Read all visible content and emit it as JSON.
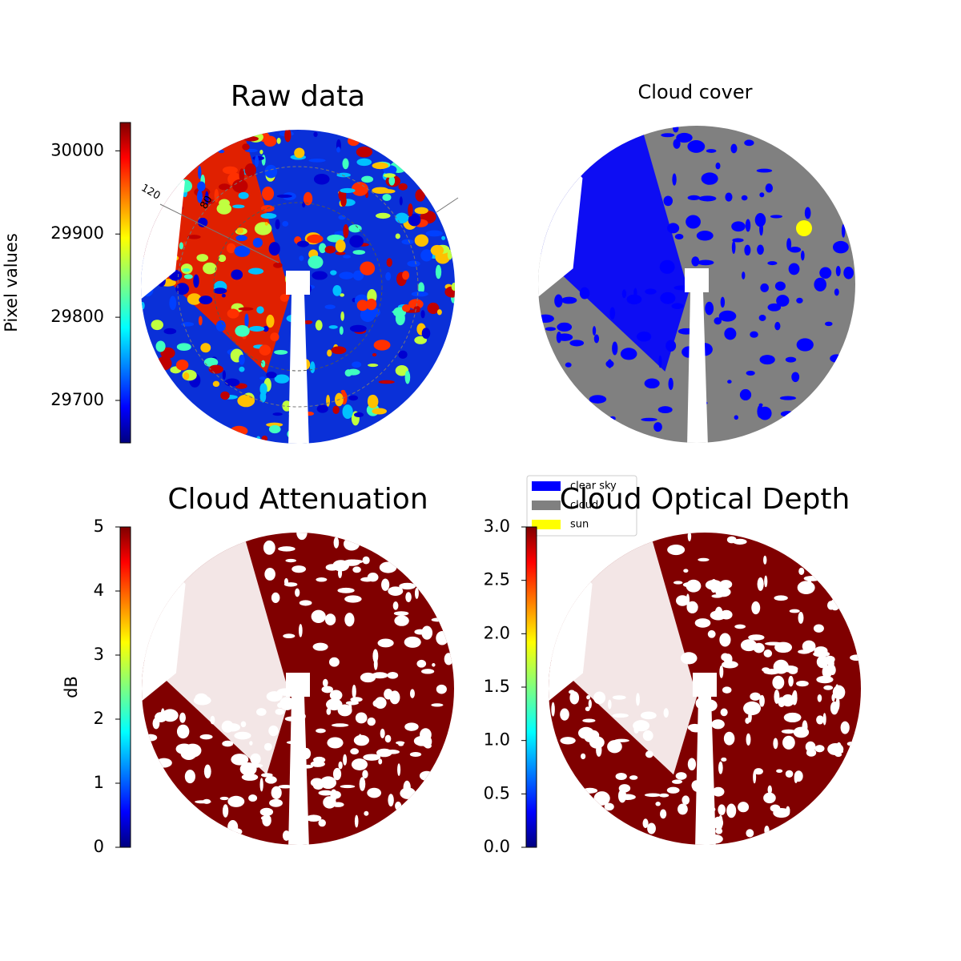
{
  "chart_data": [
    {
      "type": "image",
      "title": "Raw data",
      "colorbar": true,
      "ylabel": "Pixel values",
      "ylim": [
        29649,
        30034
      ],
      "yticks": [
        29700,
        29800,
        29900,
        30000
      ],
      "annotations": [
        "120",
        "80"
      ]
    },
    {
      "type": "image",
      "title": "Cloud cover",
      "colorbar": false,
      "series": [
        {
          "name": "clear sky",
          "color": "#0000ff"
        },
        {
          "name": "cloud",
          "color": "#808080"
        },
        {
          "name": "sun",
          "color": "#ffff00"
        }
      ]
    },
    {
      "type": "image",
      "title": "Cloud Attenuation",
      "colorbar": true,
      "ylabel": "dB",
      "ylim": [
        0,
        5
      ],
      "yticks": [
        0,
        1,
        2,
        3,
        4,
        5
      ]
    },
    {
      "type": "image",
      "title": "Cloud Optical Depth",
      "colorbar": true,
      "ylim": [
        0,
        3
      ],
      "yticks": [
        {
          "value": 0,
          "label": "0.0"
        },
        {
          "value": 0.5,
          "label": "0.5"
        },
        {
          "value": 1,
          "label": "1.0"
        },
        {
          "value": 1.5,
          "label": "1.5"
        },
        {
          "value": 2,
          "label": "2.0"
        },
        {
          "value": 2.5,
          "label": "2.5"
        },
        {
          "value": 3,
          "label": "3.0"
        }
      ]
    }
  ]
}
